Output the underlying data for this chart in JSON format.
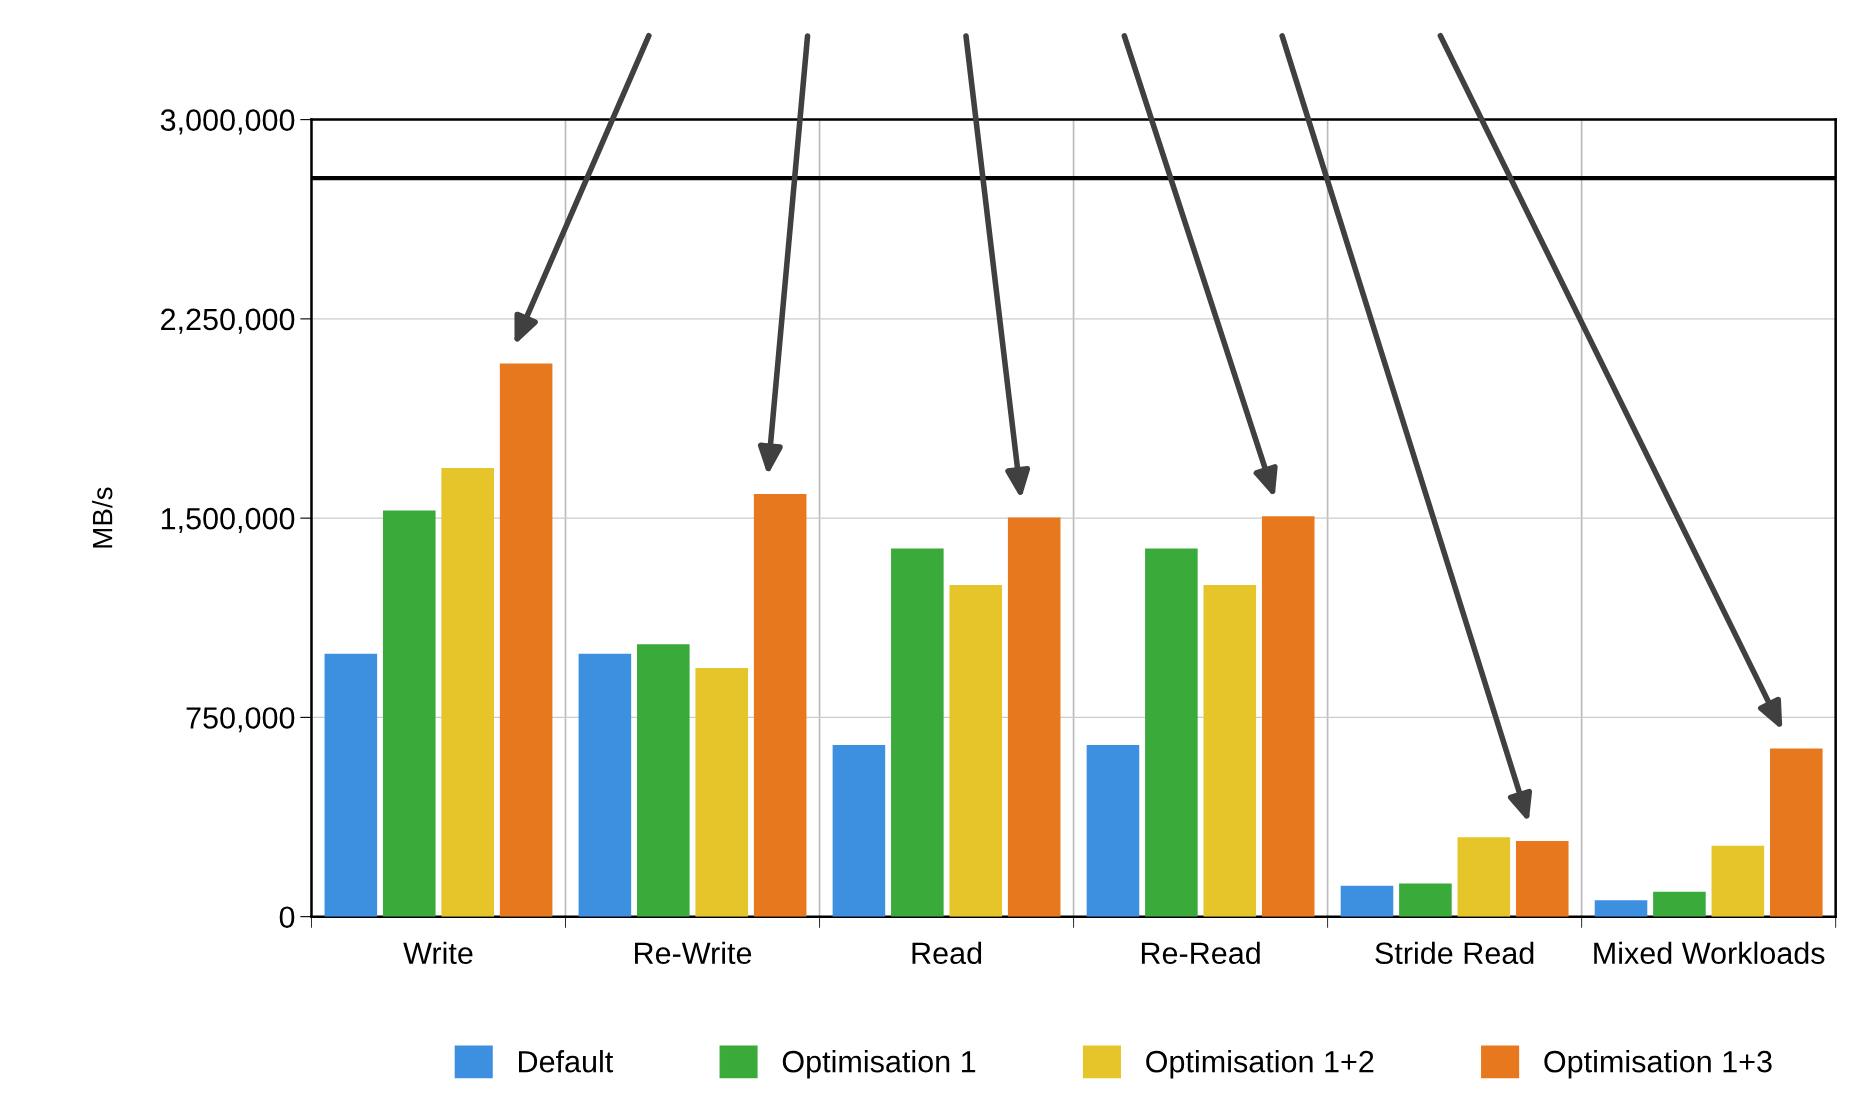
{
  "chart_data": {
    "type": "bar",
    "ylabel": "MB/s",
    "categories": [
      "Write",
      "Re-Write",
      "Read",
      "Re-Read",
      "Stride Read",
      "Mixed Workloads"
    ],
    "series": [
      {
        "name": "Default",
        "color": "#3d8fe0",
        "values": [
          990000,
          990000,
          646000,
          646000,
          116000,
          62000
        ]
      },
      {
        "name": "Optimisation 1",
        "color": "#3aaa3a",
        "values": [
          1529000,
          1025000,
          1386000,
          1386000,
          125000,
          94000
        ]
      },
      {
        "name": "Optimisation 1+2",
        "color": "#e6c52a",
        "values": [
          1689000,
          936000,
          1248000,
          1248000,
          299000,
          267000
        ]
      },
      {
        "name": "Optimisation 1+3",
        "color": "#e8781e",
        "values": [
          2082000,
          1591000,
          1502000,
          1507000,
          285000,
          633000
        ]
      }
    ],
    "ylim": [
      0,
      3000000
    ],
    "yticks": [
      {
        "value": 0,
        "label": "0"
      },
      {
        "value": 750000,
        "label": "750,000"
      },
      {
        "value": 1500000,
        "label": "1,500,000"
      },
      {
        "value": 2250000,
        "label": "2,250,000"
      },
      {
        "value": 3000000,
        "label": "3,000,000"
      }
    ],
    "ref_lines": [
      {
        "axis": "y",
        "value": 2780000,
        "color": "#000000",
        "line_style": "solid"
      }
    ],
    "grid": true,
    "legend": "bottom"
  }
}
